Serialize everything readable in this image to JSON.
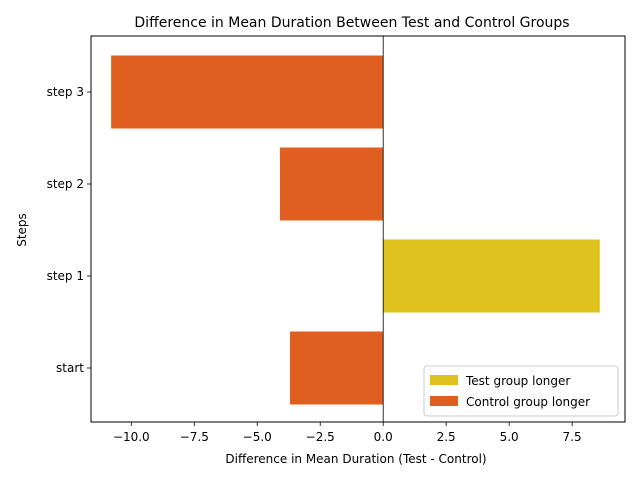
{
  "chart_data": {
    "type": "bar",
    "orientation": "horizontal",
    "title": "Difference in Mean Duration Between Test and Control Groups",
    "xlabel": "Difference in Mean Duration (Test - Control)",
    "ylabel": "Steps",
    "categories": [
      "start",
      "step 1",
      "step 2",
      "step 3"
    ],
    "values": [
      -3.7,
      8.6,
      -4.1,
      -10.8
    ],
    "xlim": [
      -11.6,
      9.6
    ],
    "xticks": [
      -10.0,
      -7.5,
      -5.0,
      -2.5,
      0.0,
      2.5,
      5.0,
      7.5
    ],
    "xtick_labels": [
      "−10.0",
      "−7.5",
      "−5.0",
      "−2.5",
      "0.0",
      "2.5",
      "5.0",
      "7.5"
    ],
    "colors": {
      "positive": "#e0c21f",
      "negative": "#e05e1f",
      "zero_line": "#000000"
    },
    "legend": {
      "placement": "lower-right",
      "entries": [
        {
          "label": "Test group longer",
          "color": "#e0c21f"
        },
        {
          "label": "Control group longer",
          "color": "#e05e1f"
        }
      ]
    },
    "grid": false
  }
}
